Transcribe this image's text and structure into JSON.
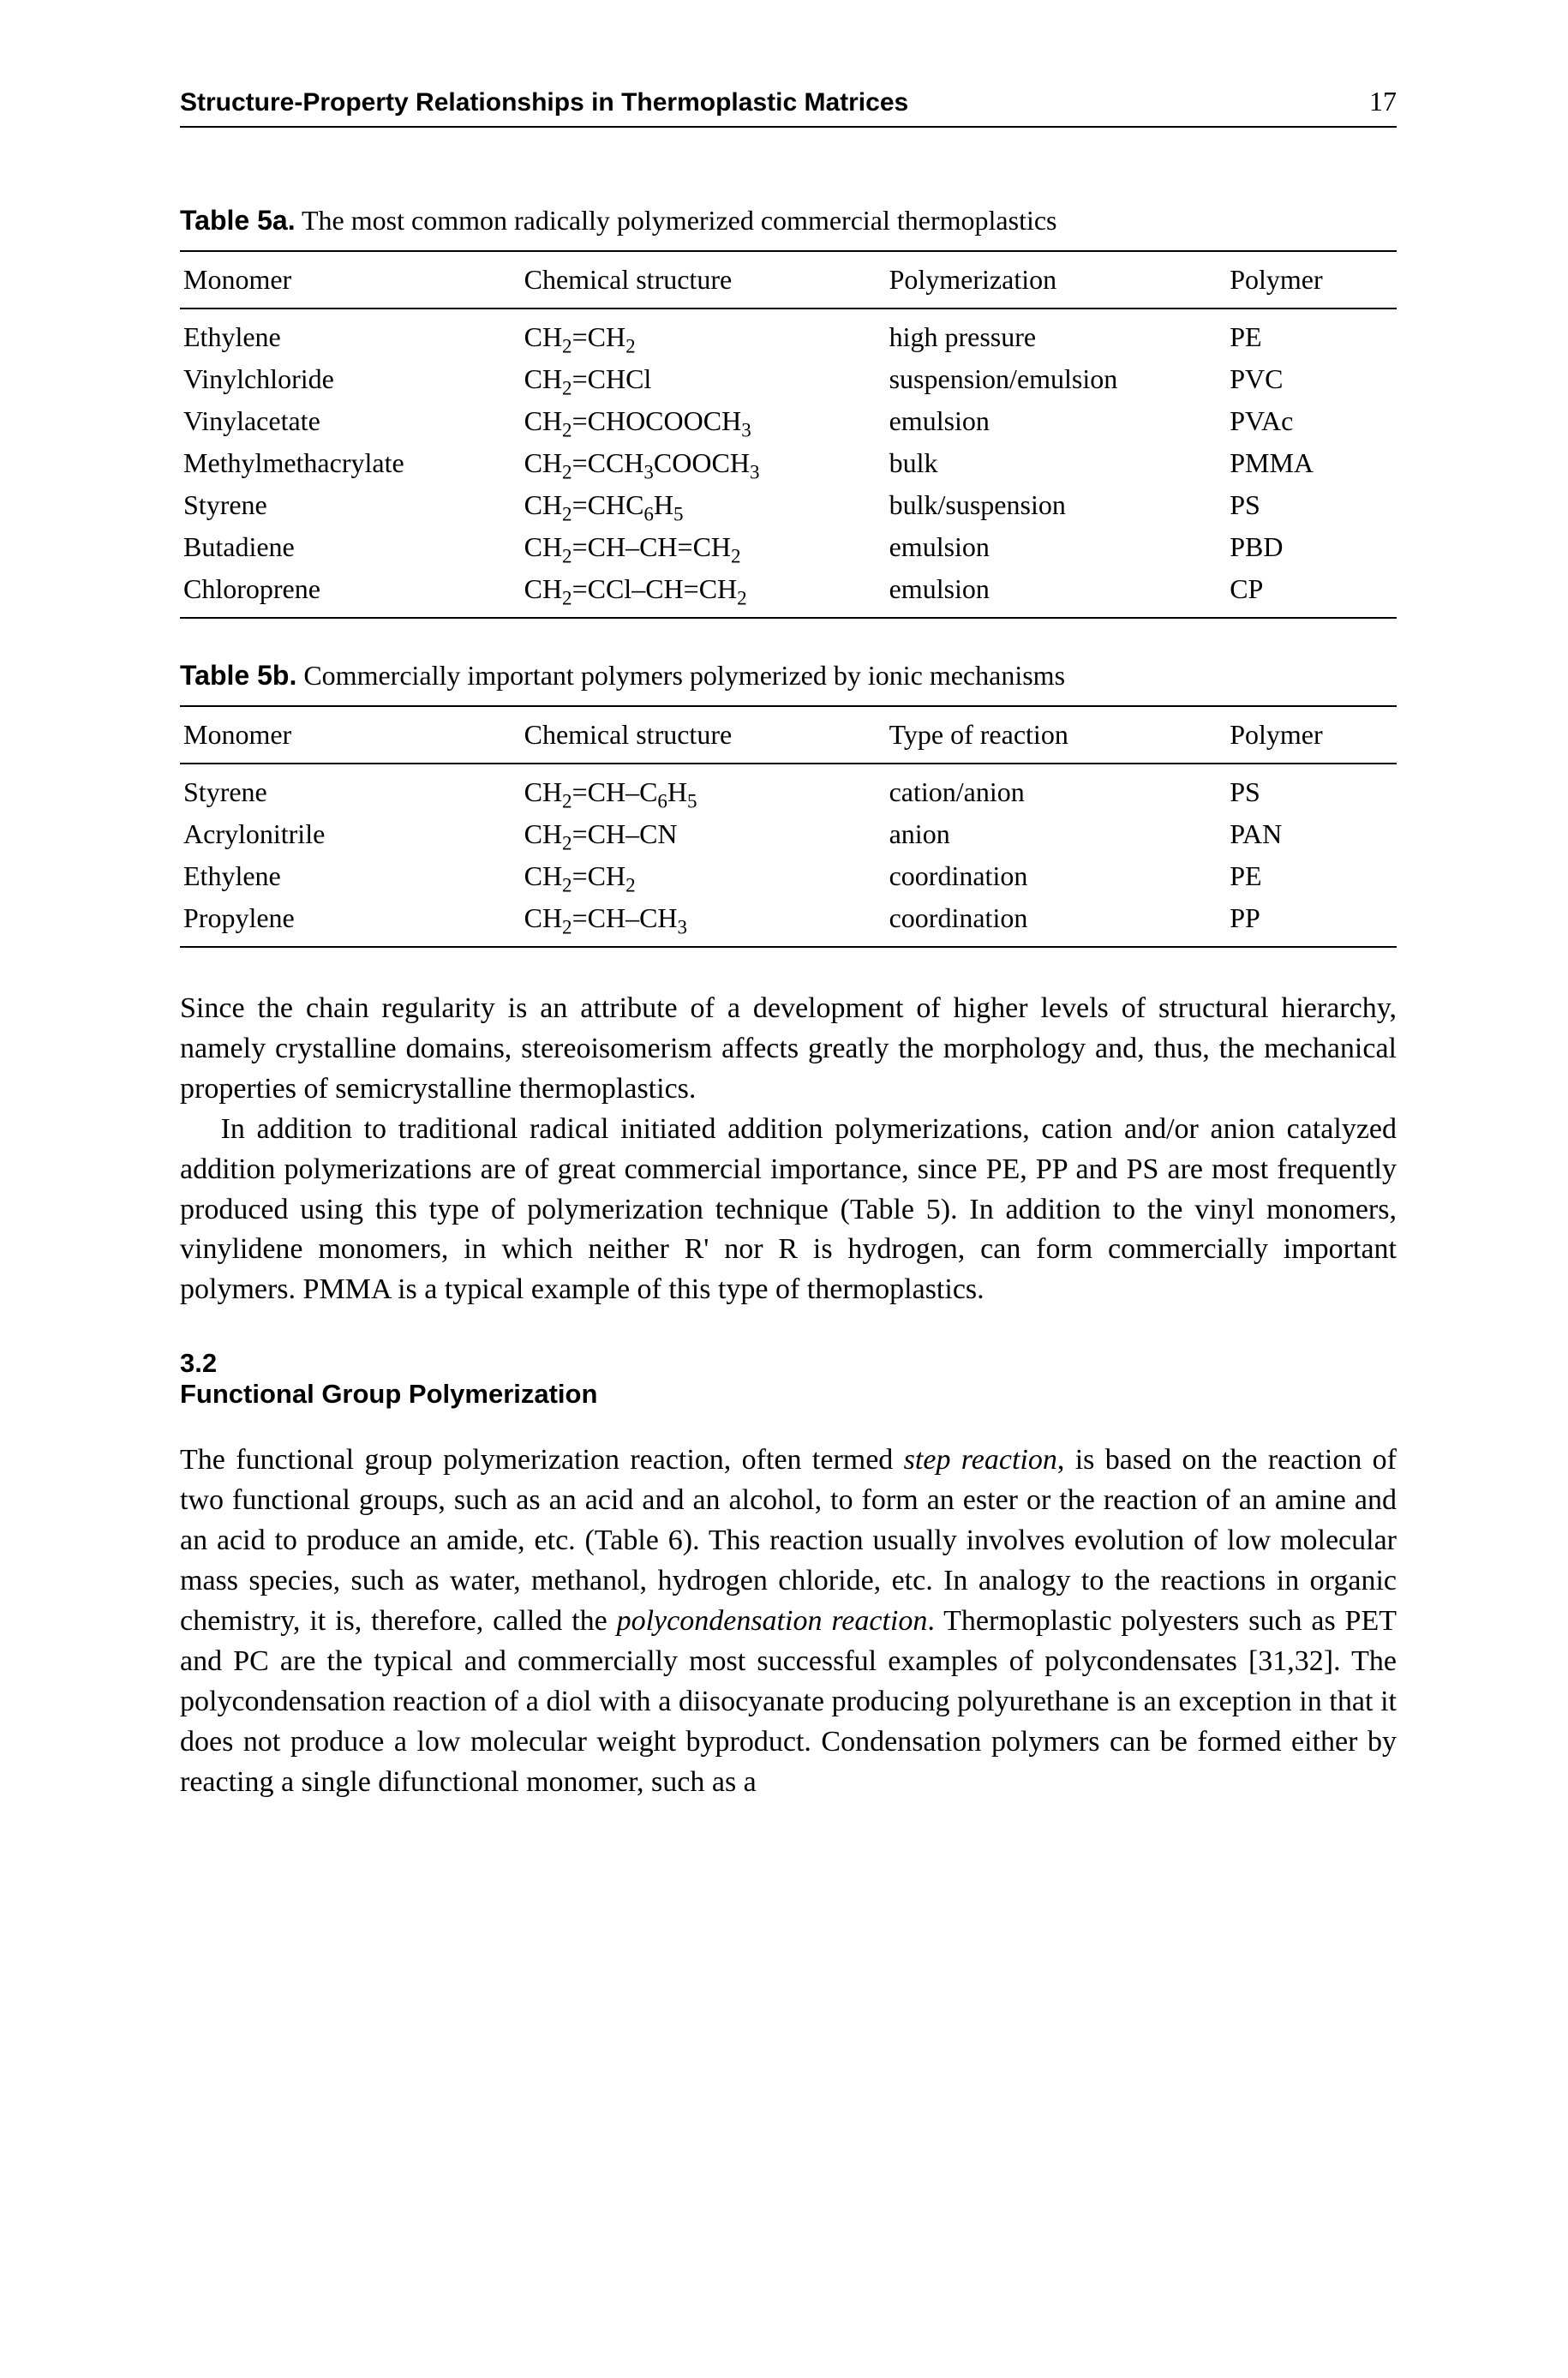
{
  "header": {
    "title": "Structure-Property Relationships in Thermoplastic Matrices",
    "page": "17"
  },
  "table5a": {
    "label": "Table 5a.",
    "caption": "The most common radically polymerized commercial thermoplastics",
    "columns": [
      "Monomer",
      "Chemical structure",
      "Polymerization",
      "Polymer"
    ],
    "rows": [
      {
        "monomer": "Ethylene",
        "structure": "CH<sub>2</sub>=CH<sub>2</sub>",
        "method": "high pressure",
        "polymer": "PE"
      },
      {
        "monomer": "Vinylchloride",
        "structure": "CH<sub>2</sub>=CHCl",
        "method": "suspension/emulsion",
        "polymer": "PVC"
      },
      {
        "monomer": "Vinylacetate",
        "structure": "CH<sub>2</sub>=CHOCOOCH<sub>3</sub>",
        "method": "emulsion",
        "polymer": "PVAc"
      },
      {
        "monomer": "Methylmethacrylate",
        "structure": "CH<sub>2</sub>=CCH<sub>3</sub>COOCH<sub>3</sub>",
        "method": "bulk",
        "polymer": "PMMA"
      },
      {
        "monomer": "Styrene",
        "structure": "CH<sub>2</sub>=CHC<sub>6</sub>H<sub>5</sub>",
        "method": "bulk/suspension",
        "polymer": "PS"
      },
      {
        "monomer": "Butadiene",
        "structure": "CH<sub>2</sub>=CH–CH=CH<sub>2</sub>",
        "method": "emulsion",
        "polymer": "PBD"
      },
      {
        "monomer": "Chloroprene",
        "structure": "CH<sub>2</sub>=CCl–CH=CH<sub>2</sub>",
        "method": "emulsion",
        "polymer": "CP"
      }
    ]
  },
  "table5b": {
    "label": "Table 5b.",
    "caption": "Commercially important polymers polymerized by ionic mechanisms",
    "columns": [
      "Monomer",
      "Chemical structure",
      "Type of reaction",
      "Polymer"
    ],
    "rows": [
      {
        "monomer": "Styrene",
        "structure": "CH<sub>2</sub>=CH–C<sub>6</sub>H<sub>5</sub>",
        "method": "cation/anion",
        "polymer": "PS"
      },
      {
        "monomer": "Acrylonitrile",
        "structure": "CH<sub>2</sub>=CH–CN",
        "method": "anion",
        "polymer": "PAN"
      },
      {
        "monomer": "Ethylene",
        "structure": "CH<sub>2</sub>=CH<sub>2</sub>",
        "method": "coordination",
        "polymer": "PE"
      },
      {
        "monomer": "Propylene",
        "structure": "CH<sub>2</sub>=CH–CH<sub>3</sub>",
        "method": "coordination",
        "polymer": "PP"
      }
    ]
  },
  "body": {
    "p1": "Since the chain regularity is an attribute of a development of higher levels of structural hierarchy, namely crystalline domains, stereoisomerism affects greatly the morphology and, thus, the mechanical properties of semicrystalline thermoplastics.",
    "p2": "In addition to traditional radical initiated addition polymerizations, cation and/or anion catalyzed addition polymerizations are of great commercial importance, since PE, PP and PS are most frequently produced using this type of polymerization technique (Table 5). In addition to the vinyl monomers, vinylidene monomers, in which neither R' nor R is hydrogen, can form commercially important polymers. PMMA is a typical example of this type of thermoplastics.",
    "sec_num": "3.2",
    "sec_title": "Functional Group Polymerization",
    "p3": "The functional group polymerization reaction, often termed <em>step reaction</em>, is based on the reaction of two functional groups, such as an acid and an alcohol, to form an ester or the reaction of an amine and an acid to produce an amide, etc. (Table 6). This reaction usually involves evolution of low molecular mass species, such as water, methanol, hydrogen chloride, etc. In analogy to the reactions in organic chemistry, it is, therefore, called the <em>polycondensation reaction</em>. Thermoplastic polyesters such as PET and PC are the typical and commercially most successful examples of polycondensates [31,32]. The polycondensation reaction of a diol with a diisocyanate producing polyurethane is an exception in that it does not produce a low molecular weight byproduct. Condensation polymers can be formed either by reacting a single difunctional monomer, such as a"
  }
}
